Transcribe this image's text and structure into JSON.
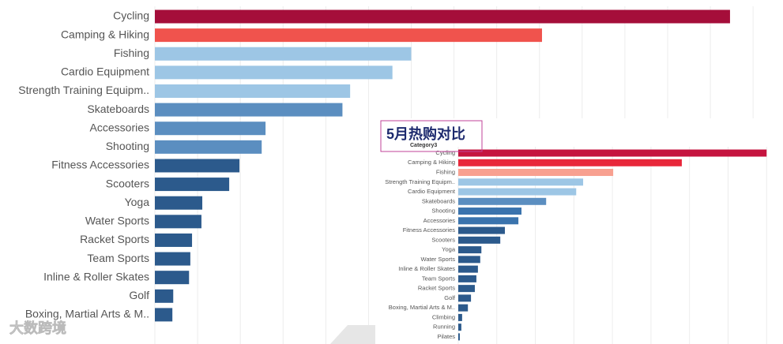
{
  "watermark": "大数跨境",
  "chart_data": [
    {
      "type": "barh",
      "categories": [
        "Cycling",
        "Camping & Hiking",
        "Fishing",
        "Cardio Equipment",
        "Strength Training Equipm..",
        "Skateboards",
        "Accessories",
        "Shooting",
        "Fitness Accessories",
        "Scooters",
        "Yoga",
        "Water Sports",
        "Racket Sports",
        "Team Sports",
        "Inline & Roller Skates",
        "Golf",
        "Boxing, Martial Arts & M.."
      ],
      "values": [
        13.46,
        9.06,
        6.0,
        5.56,
        4.57,
        4.39,
        2.59,
        2.5,
        1.98,
        1.74,
        1.11,
        1.09,
        0.87,
        0.83,
        0.8,
        0.43,
        0.41
      ],
      "colors": [
        "#a50e3a",
        "#f0534d",
        "#9dc6e5",
        "#9dc6e5",
        "#9dc6e5",
        "#5b8ec0",
        "#5b8ec0",
        "#5b8ec0",
        "#2c5a8c",
        "#2c5a8c",
        "#2c5a8c",
        "#2c5a8c",
        "#2c5a8c",
        "#2c5a8c",
        "#2c5a8c",
        "#2c5a8c",
        "#2c5a8c"
      ],
      "xlim": [
        0,
        14.7
      ],
      "xticks": [
        0,
        1,
        2,
        3,
        4,
        5,
        6,
        7,
        8,
        9,
        10,
        11,
        12,
        13,
        14
      ],
      "grid": true
    },
    {
      "type": "barh",
      "title": "5月热购对比",
      "header": "Category3",
      "categories": [
        "Cycling",
        "Camping & Hiking",
        "Fishing",
        "Strength Training Equipm..",
        "Cardio Equipment",
        "Skateboards",
        "Shooting",
        "Accessories",
        "Fitness Accessories",
        "Scooters",
        "Yoga",
        "Water Sports",
        "Inline & Roller Skates",
        "Team Sports",
        "Racket Sports",
        "Golf",
        "Boxing, Martial Arts & M..",
        "Climbing",
        "Running",
        "Pilates"
      ],
      "values": [
        8.0,
        5.8,
        4.02,
        3.24,
        3.06,
        2.28,
        1.64,
        1.56,
        1.21,
        1.09,
        0.6,
        0.57,
        0.51,
        0.47,
        0.43,
        0.33,
        0.25,
        0.1,
        0.08,
        0.04
      ],
      "colors": [
        "#c5143f",
        "#e8273a",
        "#f8a090",
        "#9dc6e5",
        "#9dc6e5",
        "#5b8ec0",
        "#3a73ad",
        "#3a73ad",
        "#2c5a8c",
        "#2c5a8c",
        "#2c5a8c",
        "#2c5a8c",
        "#2c5a8c",
        "#2c5a8c",
        "#2c5a8c",
        "#2c5a8c",
        "#2c5a8c",
        "#2c5a8c",
        "#2c5a8c",
        "#2c5a8c"
      ],
      "xlim": [
        0,
        8.2
      ],
      "xticks": [
        0,
        1,
        2,
        3,
        4,
        5,
        6,
        7,
        8
      ],
      "grid": true
    }
  ]
}
